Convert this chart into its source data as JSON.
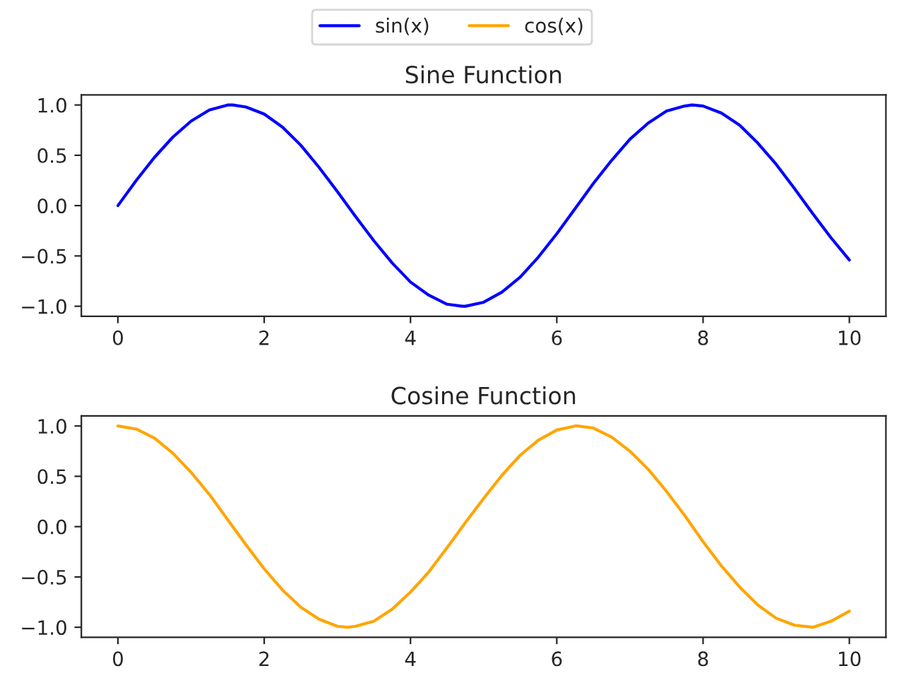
{
  "chart_data": [
    {
      "type": "line",
      "title": "Sine Function",
      "legend": "top",
      "grid": false,
      "xlim": [
        -0.5,
        10.5
      ],
      "ylim": [
        -1.1,
        1.1
      ],
      "xticks": [
        0,
        2,
        4,
        6,
        8,
        10
      ],
      "yticks": [
        {
          "value": -1,
          "label": "−1.0"
        },
        {
          "value": -0.5,
          "label": "−0.5"
        },
        {
          "value": 0,
          "label": "0.0"
        },
        {
          "value": 0.5,
          "label": "0.5"
        },
        {
          "value": 1,
          "label": "1.0"
        }
      ],
      "series": [
        {
          "name": "sin(x)",
          "color": "#0000ff",
          "x": [
            0,
            0.25,
            0.5,
            0.75,
            1,
            1.25,
            1.5,
            1.57,
            1.75,
            2,
            2.25,
            2.5,
            2.75,
            3,
            3.25,
            3.5,
            3.75,
            4,
            4.25,
            4.5,
            4.71,
            4.75,
            5,
            5.25,
            5.5,
            5.75,
            6,
            6.25,
            6.5,
            6.75,
            7,
            7.25,
            7.5,
            7.75,
            7.85,
            8,
            8.25,
            8.5,
            8.75,
            9,
            9.25,
            9.5,
            9.75,
            10
          ],
          "values": [
            0,
            0.25,
            0.48,
            0.68,
            0.84,
            0.95,
            1.0,
            1.0,
            0.98,
            0.91,
            0.78,
            0.6,
            0.38,
            0.14,
            -0.11,
            -0.35,
            -0.57,
            -0.76,
            -0.89,
            -0.98,
            -1.0,
            -1.0,
            -0.96,
            -0.86,
            -0.71,
            -0.51,
            -0.28,
            -0.03,
            0.22,
            0.45,
            0.66,
            0.82,
            0.94,
            0.99,
            1.0,
            0.99,
            0.92,
            0.8,
            0.62,
            0.41,
            0.17,
            -0.08,
            -0.32,
            -0.54
          ]
        }
      ]
    },
    {
      "type": "line",
      "title": "Cosine Function",
      "legend": "top",
      "grid": false,
      "xlim": [
        -0.5,
        10.5
      ],
      "ylim": [
        -1.1,
        1.1
      ],
      "xticks": [
        0,
        2,
        4,
        6,
        8,
        10
      ],
      "yticks": [
        {
          "value": -1,
          "label": "−1.0"
        },
        {
          "value": -0.5,
          "label": "−0.5"
        },
        {
          "value": 0,
          "label": "0.0"
        },
        {
          "value": 0.5,
          "label": "0.5"
        },
        {
          "value": 1,
          "label": "1.0"
        }
      ],
      "series": [
        {
          "name": "cos(x)",
          "color": "#ffa500",
          "x": [
            0,
            0.25,
            0.5,
            0.75,
            1,
            1.25,
            1.5,
            1.75,
            2,
            2.25,
            2.5,
            2.75,
            3,
            3.14,
            3.25,
            3.5,
            3.75,
            4,
            4.25,
            4.5,
            4.75,
            5,
            5.25,
            5.5,
            5.75,
            6,
            6.25,
            6.28,
            6.5,
            6.75,
            7,
            7.25,
            7.5,
            7.75,
            8,
            8.25,
            8.5,
            8.75,
            9,
            9.25,
            9.5,
            9.75,
            10
          ],
          "values": [
            1,
            0.97,
            0.88,
            0.73,
            0.54,
            0.32,
            0.07,
            -0.18,
            -0.42,
            -0.63,
            -0.8,
            -0.92,
            -0.99,
            -1.0,
            -0.99,
            -0.94,
            -0.82,
            -0.65,
            -0.45,
            -0.21,
            0.04,
            0.28,
            0.51,
            0.71,
            0.86,
            0.96,
            1.0,
            1.0,
            0.98,
            0.89,
            0.75,
            0.57,
            0.35,
            0.11,
            -0.15,
            -0.39,
            -0.6,
            -0.78,
            -0.91,
            -0.98,
            -1.0,
            -0.94,
            -0.84
          ]
        }
      ]
    }
  ]
}
